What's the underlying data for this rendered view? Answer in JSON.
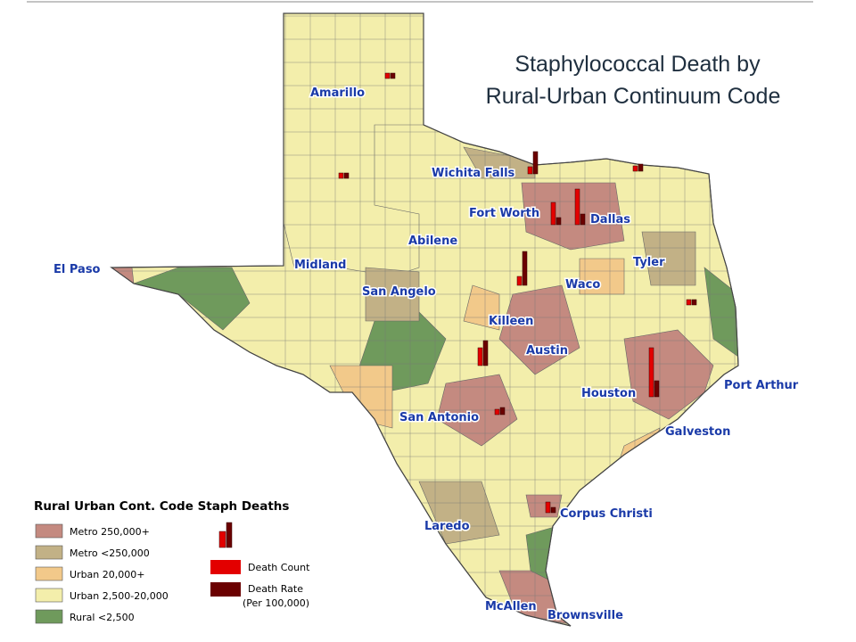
{
  "title_lines": [
    "Staphylococcal Death by",
    "Rural-Urban Continuum Code"
  ],
  "cities": [
    "Amarillo",
    "Wichita Falls",
    "Fort Worth",
    "Dallas",
    "Abilene",
    "El Paso",
    "Midland",
    "Tyler",
    "San Angelo",
    "Waco",
    "Killeen",
    "Austin",
    "Port Arthur",
    "Houston",
    "San Antonio",
    "Galveston",
    "Corpus Christi",
    "Laredo",
    "McAllen",
    "Brownsville"
  ],
  "legend": {
    "title": "Rural Urban Cont. Code Staph Deaths",
    "classes": [
      {
        "label": "Metro 250,000+",
        "color": "#c48a80"
      },
      {
        "label": "Metro <250,000",
        "color": "#c2b186"
      },
      {
        "label": "Urban 20,000+",
        "color": "#f2c98a"
      },
      {
        "label": "Urban 2,500-20,000",
        "color": "#f3eeab"
      },
      {
        "label": "Rural <2,500",
        "color": "#6f9a5c"
      }
    ],
    "count_label": "Death Count",
    "count_color": "#e30000",
    "rate_label": "Death Rate",
    "rate_color": "#6b0000",
    "rate_unit": "(Per 100,000)"
  },
  "death_count_bars": [
    55,
    40,
    25,
    8,
    10,
    20,
    12,
    6,
    6,
    6,
    6,
    6
  ],
  "death_rate_bars": [
    18,
    12,
    8,
    25,
    38,
    28,
    6,
    8,
    6,
    6,
    8,
    6
  ]
}
